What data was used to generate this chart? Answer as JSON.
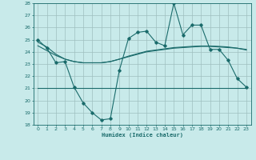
{
  "x": [
    0,
    1,
    2,
    3,
    4,
    5,
    6,
    7,
    8,
    9,
    10,
    11,
    12,
    13,
    14,
    15,
    16,
    17,
    18,
    19,
    20,
    21,
    22,
    23
  ],
  "humidex_line": [
    25.0,
    24.3,
    23.1,
    23.2,
    21.1,
    19.8,
    19.0,
    18.4,
    18.5,
    22.5,
    25.1,
    25.6,
    25.7,
    24.8,
    24.5,
    28.0,
    25.4,
    26.2,
    26.2,
    24.2,
    24.2,
    23.3,
    21.8,
    21.1
  ],
  "trend1": [
    24.8,
    24.4,
    23.8,
    23.4,
    23.2,
    23.1,
    23.1,
    23.1,
    23.2,
    23.4,
    23.6,
    23.8,
    24.0,
    24.1,
    24.2,
    24.3,
    24.35,
    24.4,
    24.45,
    24.45,
    24.4,
    24.35,
    24.3,
    24.2
  ],
  "trend2": [
    24.5,
    24.1,
    23.7,
    23.4,
    23.2,
    23.1,
    23.1,
    23.1,
    23.2,
    23.4,
    23.65,
    23.85,
    24.05,
    24.15,
    24.25,
    24.35,
    24.4,
    24.45,
    24.48,
    24.48,
    24.45,
    24.4,
    24.3,
    24.15
  ],
  "flat_line": [
    21.0,
    21.0,
    21.0,
    21.0,
    21.0,
    21.0,
    21.0,
    21.0,
    21.0,
    21.0,
    21.0,
    21.0,
    21.0,
    21.0,
    21.0,
    21.0,
    21.0,
    21.0,
    21.0,
    21.0,
    21.0,
    21.0,
    21.0,
    21.0
  ],
  "line_color": "#1a6b6b",
  "bg_color": "#c8eaea",
  "grid_color": "#9fbfbf",
  "xlabel": "Humidex (Indice chaleur)",
  "ylim": [
    18,
    28
  ],
  "yticks": [
    18,
    19,
    20,
    21,
    22,
    23,
    24,
    25,
    26,
    27,
    28
  ],
  "xticks": [
    0,
    1,
    2,
    3,
    4,
    5,
    6,
    7,
    8,
    9,
    10,
    11,
    12,
    13,
    14,
    15,
    16,
    17,
    18,
    19,
    20,
    21,
    22,
    23
  ]
}
